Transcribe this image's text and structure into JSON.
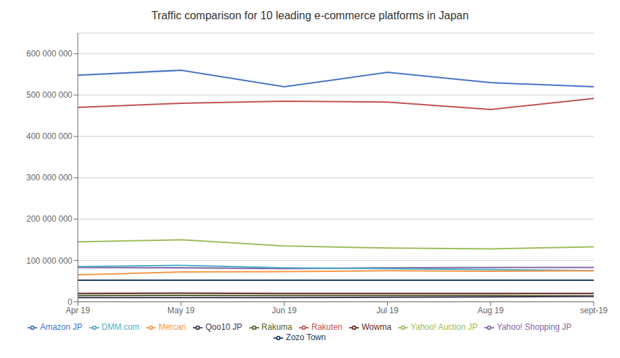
{
  "chart_data": {
    "type": "line",
    "title": "Traffic comparison for 10 leading e-commerce platforms in Japan",
    "categories": [
      "Apr 19",
      "May 19",
      "Jun 19",
      "Jul 19",
      "Aug 19",
      "sept-19"
    ],
    "series": [
      {
        "name": "Amazon JP",
        "color": "#4472C4",
        "values": [
          548000000,
          560000000,
          520000000,
          555000000,
          530000000,
          520000000
        ]
      },
      {
        "name": "Rakuten",
        "color": "#C0504D",
        "values": [
          470000000,
          480000000,
          485000000,
          483000000,
          465000000,
          492000000
        ]
      },
      {
        "name": "Yahoo! Auction JP",
        "color": "#9BBB59",
        "values": [
          145000000,
          150000000,
          135000000,
          130000000,
          128000000,
          133000000
        ]
      },
      {
        "name": "Yahoo! Shopping JP",
        "color": "#8064A2",
        "values": [
          83000000,
          82000000,
          80000000,
          82000000,
          83000000,
          83000000
        ]
      },
      {
        "name": "DMM.com",
        "color": "#4BACC6",
        "values": [
          85000000,
          88000000,
          82000000,
          80000000,
          78000000,
          75000000
        ]
      },
      {
        "name": "Mercari",
        "color": "#F79646",
        "values": [
          65000000,
          72000000,
          73000000,
          75000000,
          74000000,
          75000000
        ]
      },
      {
        "name": "Zozo Town",
        "color": "#17375E",
        "values": [
          52000000,
          52000000,
          52000000,
          52000000,
          52000000,
          52000000
        ]
      },
      {
        "name": "Wowma",
        "color": "#632523",
        "values": [
          20000000,
          21000000,
          20000000,
          20000000,
          20000000,
          20000000
        ]
      },
      {
        "name": "Rakuma",
        "color": "#4F6228",
        "values": [
          15000000,
          15500000,
          15000000,
          15000000,
          15000000,
          14500000
        ]
      },
      {
        "name": "Qoo10 JP",
        "color": "#3F3151",
        "values": [
          10000000,
          10000000,
          10000000,
          11000000,
          12000000,
          13000000
        ]
      }
    ],
    "ylim": [
      0,
      650000000
    ],
    "yticks": [
      0,
      {
        "value": 100000000,
        "label": "100 000 000"
      },
      {
        "value": 200000000,
        "label": "200 000 000"
      },
      {
        "value": 300000000,
        "label": "300 000 000"
      },
      {
        "value": 400000000,
        "label": "400 000 000"
      },
      {
        "value": 500000000,
        "label": "500 000 000"
      },
      {
        "value": 600000000,
        "label": "600 000 000"
      }
    ],
    "grid": true,
    "legend": "bottom"
  }
}
